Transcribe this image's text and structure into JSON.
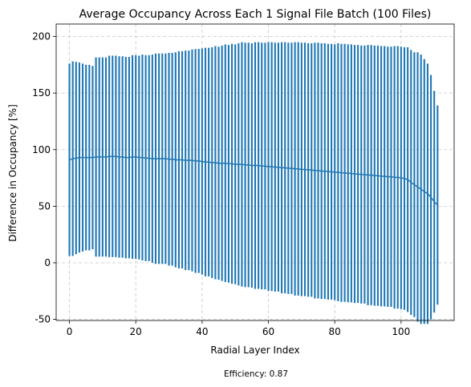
{
  "chart_data": {
    "type": "errorbar",
    "title": "Average Occupancy Across Each 1 Signal File Batch (100 Files)",
    "xlabel": "Radial Layer Index",
    "ylabel": "Difference in Occupancy [%]",
    "xlim": [
      -4,
      116
    ],
    "ylim": [
      -51,
      211
    ],
    "xticks": [
      0,
      20,
      40,
      60,
      80,
      100
    ],
    "yticks": [
      -50,
      0,
      50,
      100,
      150,
      200
    ],
    "grid": true,
    "series": [
      {
        "color": "#1f77b4",
        "x": [
          0,
          1,
          2,
          3,
          4,
          5,
          6,
          7,
          8,
          9,
          10,
          11,
          12,
          13,
          14,
          15,
          16,
          17,
          18,
          19,
          20,
          21,
          22,
          23,
          24,
          25,
          26,
          27,
          28,
          29,
          30,
          31,
          32,
          33,
          34,
          35,
          36,
          37,
          38,
          39,
          40,
          41,
          42,
          43,
          44,
          45,
          46,
          47,
          48,
          49,
          50,
          51,
          52,
          53,
          54,
          55,
          56,
          57,
          58,
          59,
          60,
          61,
          62,
          63,
          64,
          65,
          66,
          67,
          68,
          69,
          70,
          71,
          72,
          73,
          74,
          75,
          76,
          77,
          78,
          79,
          80,
          81,
          82,
          83,
          84,
          85,
          86,
          87,
          88,
          89,
          90,
          91,
          92,
          93,
          94,
          95,
          96,
          97,
          98,
          99,
          100,
          101,
          102,
          103,
          104,
          105,
          106,
          107,
          108,
          109,
          110,
          111
        ],
        "y": [
          91,
          92,
          92.5,
          93,
          93,
          93,
          93,
          93,
          93.5,
          93.5,
          93.5,
          93.5,
          94,
          94,
          94,
          93.5,
          93.5,
          93,
          93,
          93.5,
          93.5,
          93,
          93,
          92.5,
          92.5,
          92,
          92,
          92,
          92,
          92,
          91.5,
          91.5,
          91,
          91,
          91,
          90.5,
          90.5,
          90.5,
          90,
          90,
          89.5,
          89,
          89,
          88.5,
          88.5,
          88,
          88,
          88,
          87.5,
          87.5,
          87,
          87,
          87,
          86.5,
          86.5,
          86,
          86,
          86,
          85.5,
          85.5,
          85,
          85,
          84.5,
          84.5,
          84,
          84,
          83.5,
          83.5,
          83,
          83,
          82.5,
          82.5,
          82,
          82,
          81.5,
          81.5,
          81,
          81,
          80.5,
          80.5,
          80,
          80,
          79.5,
          79.5,
          79,
          79,
          78.5,
          78.5,
          78,
          78,
          77.5,
          77.5,
          77,
          77,
          76.5,
          76.5,
          76,
          76,
          75.5,
          75.5,
          75,
          74.5,
          73.5,
          71,
          69,
          67,
          65,
          63,
          61,
          58,
          54,
          51
        ],
        "err": [
          85,
          86,
          85,
          84,
          83,
          82,
          82,
          81,
          88,
          88,
          88,
          88,
          89,
          89,
          89,
          89,
          89,
          89,
          89,
          90,
          90,
          90,
          91,
          91,
          91,
          92,
          93,
          93,
          93,
          93,
          94,
          94,
          95,
          96,
          96,
          97,
          97,
          98,
          99,
          99,
          100,
          101,
          101,
          102,
          103,
          103,
          104,
          105,
          105,
          106,
          106,
          107,
          108,
          108,
          108,
          108,
          109,
          109,
          109,
          109,
          110,
          110,
          110,
          110,
          111,
          111,
          111,
          111,
          112,
          112,
          112,
          112,
          112,
          112,
          113,
          113,
          113,
          113,
          113,
          113,
          113,
          114,
          114,
          114,
          114,
          114,
          114,
          114,
          114,
          114,
          115,
          115,
          115,
          115,
          115,
          115,
          115,
          115,
          116,
          116,
          116,
          116,
          117,
          117,
          117,
          119,
          119,
          117,
          115,
          108,
          98,
          88
        ]
      }
    ]
  },
  "footnote": "Efficiency: 0.87"
}
